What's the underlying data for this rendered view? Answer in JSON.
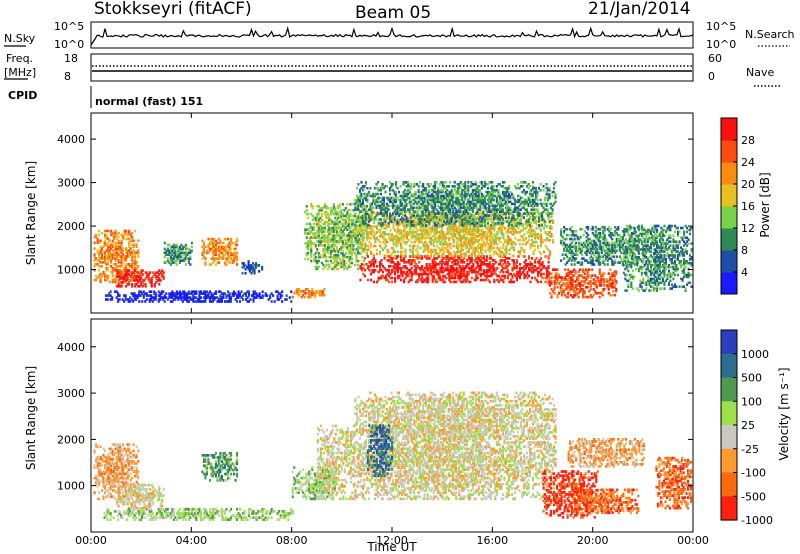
{
  "header": {
    "station": "Stokkseyri (fitACF)",
    "beam": "Beam 05",
    "date": "21/Jan/2014"
  },
  "top_panels": {
    "nsky_label": "N.Sky",
    "nsky_ticks": [
      "10^5",
      "10^0"
    ],
    "nsearch_label": "N.Search",
    "nsearch_ticks": [
      "10^5",
      "10^0"
    ],
    "freq_label_1": "Freq.",
    "freq_label_2": "[MHz]",
    "freq_ticks": [
      "18",
      "8"
    ],
    "nave_label": "Nave",
    "nave_ticks": [
      "60",
      "0"
    ],
    "cpid_label": "CPID",
    "cpid_text": "normal (fast) 151"
  },
  "chart_data": [
    {
      "type": "heatmap",
      "name": "power",
      "ylabel": "Slant Range [km]",
      "yticks": [
        "1000",
        "2000",
        "3000",
        "4000"
      ],
      "ylim": [
        0,
        4600
      ],
      "x_range_hours": [
        0,
        24
      ],
      "colorbar_label": "Power [dB]",
      "colorbar_ticks": [
        "4",
        "8",
        "12",
        "16",
        "20",
        "24",
        "28"
      ],
      "colors": [
        "#1a1aff",
        "#1e4fa8",
        "#2e8a55",
        "#7ad14a",
        "#e8c020",
        "#ff8a10",
        "#ff4a10",
        "#ff1010"
      ],
      "regions": [
        {
          "t": [
            0.1,
            1.9
          ],
          "r": [
            700,
            1900
          ],
          "level": 5
        },
        {
          "t": [
            1.0,
            2.9
          ],
          "r": [
            600,
            1000
          ],
          "level": 7
        },
        {
          "t": [
            2.9,
            4.0
          ],
          "r": [
            1100,
            1600
          ],
          "level": 2
        },
        {
          "t": [
            4.4,
            5.8
          ],
          "r": [
            1100,
            1700
          ],
          "level": 5
        },
        {
          "t": [
            6.0,
            6.8
          ],
          "r": [
            900,
            1200
          ],
          "level": 1
        },
        {
          "t": [
            8.0,
            9.3
          ],
          "r": [
            350,
            550
          ],
          "level": 5
        },
        {
          "t": [
            8.5,
            11.0
          ],
          "r": [
            1000,
            2500
          ],
          "level": 3
        },
        {
          "t": [
            10.7,
            18.2
          ],
          "r": [
            700,
            1300
          ],
          "level": 7
        },
        {
          "t": [
            10.7,
            18.4
          ],
          "r": [
            1300,
            2300
          ],
          "level": 4
        },
        {
          "t": [
            10.5,
            18.5
          ],
          "r": [
            2000,
            3000
          ],
          "level": 2
        },
        {
          "t": [
            18.2,
            20.9
          ],
          "r": [
            350,
            1000
          ],
          "level": 6
        },
        {
          "t": [
            18.7,
            21.8
          ],
          "r": [
            1100,
            2000
          ],
          "level": 2
        },
        {
          "t": [
            21.2,
            23.9
          ],
          "r": [
            500,
            2000
          ],
          "level": 2
        },
        {
          "t": [
            0.5,
            8.0
          ],
          "r": [
            250,
            500
          ],
          "level": 0
        }
      ]
    },
    {
      "type": "heatmap",
      "name": "velocity",
      "ylabel": "Slant Range [km]",
      "yticks": [
        "1000",
        "2000",
        "3000",
        "4000"
      ],
      "ylim": [
        0,
        4600
      ],
      "x_range_hours": [
        0,
        24
      ],
      "xlabel": "Time UT",
      "xticks": [
        "00:00",
        "04:00",
        "08:00",
        "12:00",
        "16:00",
        "20:00",
        "00:00"
      ],
      "colorbar_label": "Velocity [m s⁻¹]",
      "colorbar_ticks": [
        "1000",
        "500",
        "100",
        "25",
        "-25",
        "-100",
        "-500",
        "-1000"
      ],
      "colors": [
        "#2a3fbf",
        "#2d6e90",
        "#4f9a4f",
        "#9ee04a",
        "#c8c8c0",
        "#ff9a30",
        "#ff6a10",
        "#ff2010"
      ],
      "regions": [
        {
          "t": [
            0.1,
            1.9
          ],
          "r": [
            700,
            1900
          ],
          "level": 5
        },
        {
          "t": [
            1.0,
            2.9
          ],
          "r": [
            500,
            1000
          ],
          "level": 4
        },
        {
          "t": [
            4.4,
            5.8
          ],
          "r": [
            1100,
            1700
          ],
          "level": 2
        },
        {
          "t": [
            8.0,
            9.8
          ],
          "r": [
            700,
            1400
          ],
          "level": 3
        },
        {
          "t": [
            9.0,
            18.5
          ],
          "r": [
            700,
            2300
          ],
          "level": 4
        },
        {
          "t": [
            10.5,
            18.5
          ],
          "r": [
            2000,
            3000
          ],
          "level": 4
        },
        {
          "t": [
            11.0,
            12.0
          ],
          "r": [
            1200,
            2300
          ],
          "level": 1
        },
        {
          "t": [
            18.0,
            20.2
          ],
          "r": [
            300,
            1300
          ],
          "level": 7
        },
        {
          "t": [
            19.2,
            21.8
          ],
          "r": [
            400,
            900
          ],
          "level": 6
        },
        {
          "t": [
            19.0,
            22.0
          ],
          "r": [
            1400,
            2000
          ],
          "level": 5
        },
        {
          "t": [
            22.5,
            23.9
          ],
          "r": [
            500,
            1600
          ],
          "level": 6
        },
        {
          "t": [
            0.5,
            8.0
          ],
          "r": [
            250,
            500
          ],
          "level": 3
        }
      ]
    }
  ]
}
